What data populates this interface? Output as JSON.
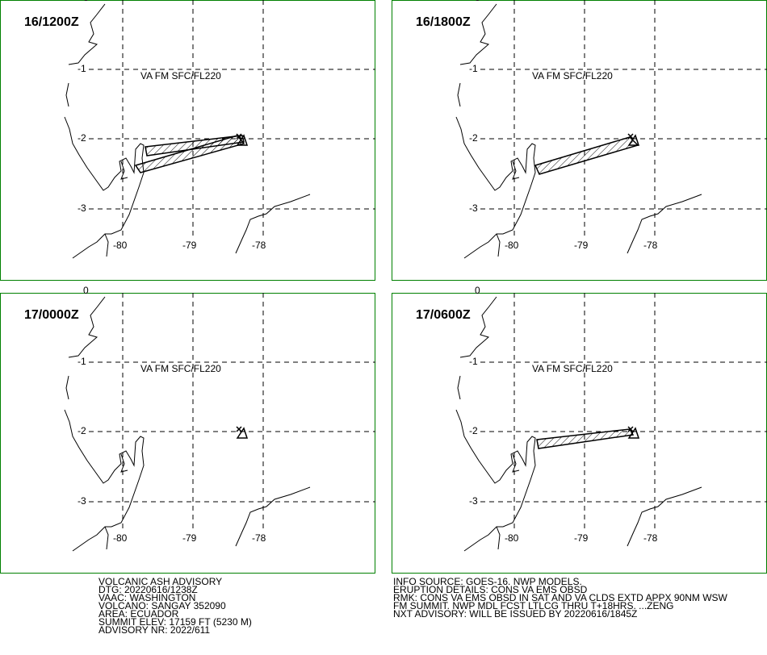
{
  "panels": [
    {
      "time": "16/1200Z",
      "layer": "VA FM SFC/FL220"
    },
    {
      "time": "16/1800Z",
      "layer": "VA FM SFC/FL220"
    },
    {
      "time": "17/0000Z",
      "layer": "VA FM SFC/FL220"
    },
    {
      "time": "17/0600Z",
      "layer": "VA FM SFC/FL220"
    }
  ],
  "lat_labels": [
    "0",
    "-1",
    "-2",
    "-3"
  ],
  "lon_labels": [
    "-80",
    "-79",
    "-78"
  ],
  "advisory_left": [
    "VOLCANIC ASH ADVISORY",
    "DTG: 20220616/1238Z",
    "VAAC: WASHINGTON",
    "VOLCANO: SANGAY 352090",
    "AREA: ECUADOR",
    "SUMMIT ELEV: 17159 FT (5230 M)",
    "ADVISORY NR: 2022/611"
  ],
  "advisory_right": [
    "INFO SOURCE: GOES-16. NWP MODELS.",
    "ERUPTION DETAILS: CONS VA EMS OBSD",
    "RMK: CONS VA EMS OBSD IN SAT AND VA CLDS EXTD APPX 90NM WSW",
    "FM SUMMIT. NWP MDL FCST LTLCG THRU T+18HRS. ...ZENG",
    "NXT ADVISORY: WILL BE ISSUED BY 20220616/1845Z"
  ]
}
